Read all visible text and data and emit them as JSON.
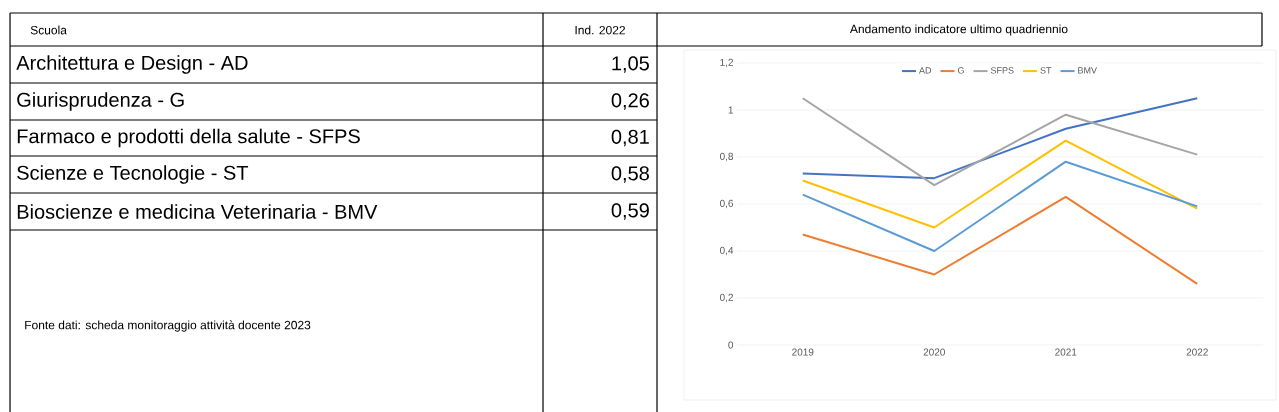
{
  "chart_data": {
    "type": "line",
    "title": "Andamento indicatore ultimo quadriennio",
    "categories": [
      "2019",
      "2020",
      "2021",
      "2022"
    ],
    "series": [
      {
        "name": "AD",
        "color": "#4472c4",
        "values": [
          0.73,
          0.71,
          0.92,
          1.05
        ]
      },
      {
        "name": "G",
        "color": "#ed7d31",
        "values": [
          0.47,
          0.3,
          0.63,
          0.26
        ]
      },
      {
        "name": "SFPS",
        "color": "#a5a5a5",
        "values": [
          1.05,
          0.68,
          0.98,
          0.81
        ]
      },
      {
        "name": "ST",
        "color": "#ffc000",
        "values": [
          0.7,
          0.5,
          0.87,
          0.58
        ]
      },
      {
        "name": "BMV",
        "color": "#5b9bd5",
        "values": [
          0.64,
          0.4,
          0.78,
          0.59
        ]
      }
    ],
    "ylim": [
      0,
      1.2
    ],
    "yticks": [
      0,
      {
        "value": 0.2,
        "label": "0,2"
      },
      {
        "value": 0.4,
        "label": "0,4"
      },
      {
        "value": 0.6,
        "label": "0,6"
      },
      {
        "value": 0.8,
        "label": "0,8"
      },
      1,
      {
        "value": 1.2,
        "label": "1,2"
      }
    ],
    "grid": "y",
    "legend": "top",
    "marker": "none",
    "line_style": "solid",
    "annotations": [
      "Scuola",
      "Ind. 2022",
      "Architettura e Design - AD",
      "Giurisprudenza - G",
      "Farmaco e prodotti della salute - SFPS",
      "Scienze e Tecnologie - ST",
      "Bioscienze e medicina Veterinaria - BMV",
      "1,05",
      "0,26",
      "0,81",
      "0,58",
      "0,59",
      "Fonte dati: scheda monitoraggio attività docente 2023"
    ]
  }
}
